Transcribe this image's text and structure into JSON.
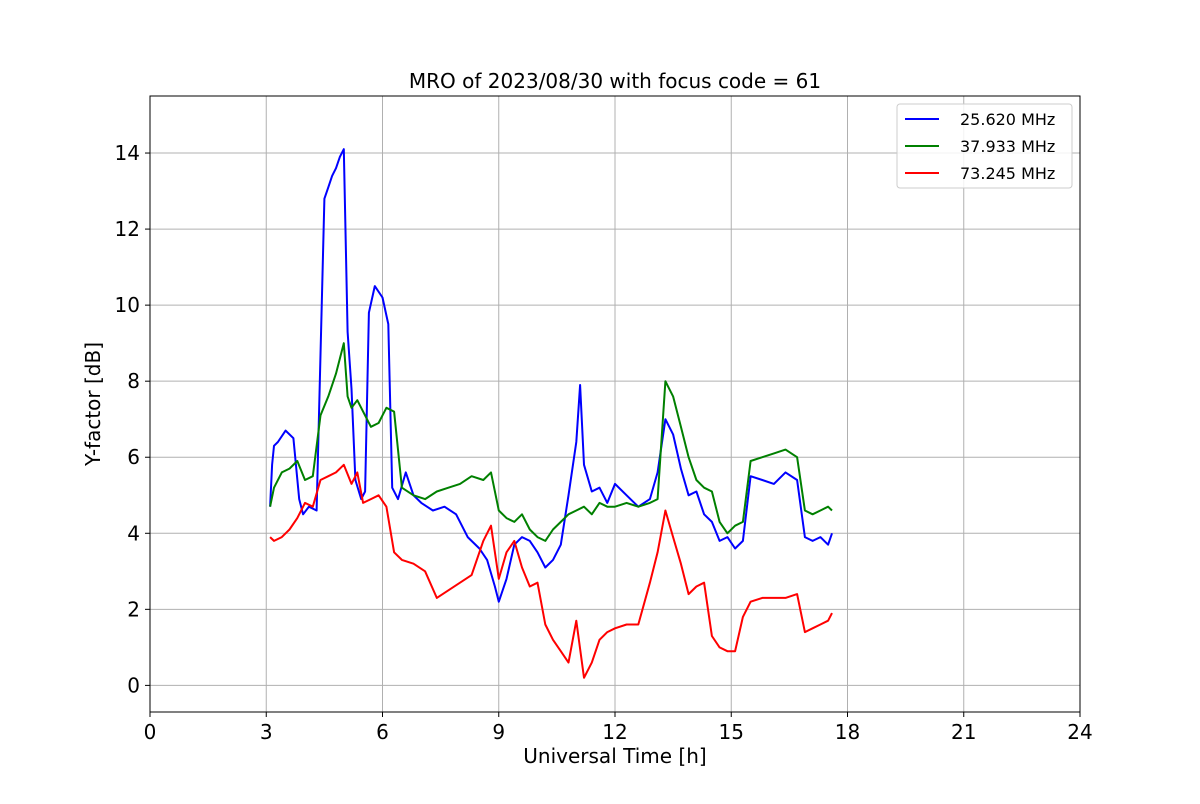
{
  "chart_data": {
    "type": "line",
    "title": "MRO of 2023/08/30 with focus code = 61",
    "xlabel": "Universal Time [h]",
    "ylabel": "Y-factor [dB]",
    "xlim": [
      0,
      24
    ],
    "ylim": [
      -0.7,
      15.5
    ],
    "xticks": [
      0,
      3,
      6,
      9,
      12,
      15,
      18,
      21,
      24
    ],
    "yticks": [
      0,
      2,
      4,
      6,
      8,
      10,
      12,
      14
    ],
    "grid": true,
    "legend_position": "top-right",
    "series": [
      {
        "name": "25.620 MHz",
        "color": "#0000ff",
        "x": [
          3.1,
          3.15,
          3.2,
          3.3,
          3.5,
          3.7,
          3.85,
          3.95,
          4.1,
          4.3,
          4.5,
          4.6,
          4.7,
          4.8,
          4.9,
          5.0,
          5.1,
          5.2,
          5.3,
          5.45,
          5.55,
          5.65,
          5.8,
          6.0,
          6.15,
          6.25,
          6.4,
          6.6,
          6.8,
          7.0,
          7.3,
          7.6,
          7.9,
          8.2,
          8.5,
          8.7,
          8.9,
          9.0,
          9.2,
          9.4,
          9.6,
          9.8,
          10.0,
          10.2,
          10.4,
          10.6,
          10.8,
          11.0,
          11.1,
          11.2,
          11.4,
          11.6,
          11.8,
          12.0,
          12.3,
          12.6,
          12.9,
          13.1,
          13.3,
          13.5,
          13.7,
          13.9,
          14.1,
          14.3,
          14.5,
          14.7,
          14.9,
          15.1,
          15.3,
          15.5,
          15.8,
          16.1,
          16.4,
          16.7,
          16.9,
          17.1,
          17.3,
          17.5,
          17.6
        ],
        "y": [
          4.7,
          5.8,
          6.3,
          6.4,
          6.7,
          6.5,
          4.9,
          4.5,
          4.7,
          4.6,
          12.8,
          13.1,
          13.4,
          13.6,
          13.9,
          14.1,
          9.3,
          7.8,
          5.4,
          4.9,
          5.1,
          9.8,
          10.5,
          10.2,
          9.5,
          5.2,
          4.9,
          5.6,
          5.0,
          4.8,
          4.6,
          4.7,
          4.5,
          3.9,
          3.6,
          3.3,
          2.6,
          2.2,
          2.8,
          3.7,
          3.9,
          3.8,
          3.5,
          3.1,
          3.3,
          3.7,
          5.0,
          6.4,
          7.9,
          5.8,
          5.1,
          5.2,
          4.8,
          5.3,
          5.0,
          4.7,
          4.9,
          5.6,
          7.0,
          6.6,
          5.7,
          5.0,
          5.1,
          4.5,
          4.3,
          3.8,
          3.9,
          3.6,
          3.8,
          5.5,
          5.4,
          5.3,
          5.6,
          5.4,
          3.9,
          3.8,
          3.9,
          3.7,
          4.0
        ]
      },
      {
        "name": "37.933 MHz",
        "color": "#008000",
        "x": [
          3.1,
          3.2,
          3.4,
          3.6,
          3.8,
          4.0,
          4.2,
          4.4,
          4.6,
          4.8,
          5.0,
          5.1,
          5.2,
          5.35,
          5.5,
          5.7,
          5.9,
          6.1,
          6.3,
          6.5,
          6.8,
          7.1,
          7.4,
          7.7,
          8.0,
          8.3,
          8.6,
          8.8,
          9.0,
          9.2,
          9.4,
          9.6,
          9.8,
          10.0,
          10.2,
          10.4,
          10.6,
          10.8,
          11.0,
          11.2,
          11.4,
          11.6,
          11.8,
          12.0,
          12.3,
          12.6,
          12.9,
          13.1,
          13.3,
          13.5,
          13.7,
          13.9,
          14.1,
          14.3,
          14.5,
          14.7,
          14.9,
          15.1,
          15.3,
          15.5,
          15.8,
          16.1,
          16.4,
          16.7,
          16.9,
          17.1,
          17.3,
          17.5,
          17.6
        ],
        "y": [
          4.7,
          5.2,
          5.6,
          5.7,
          5.9,
          5.4,
          5.5,
          7.1,
          7.6,
          8.2,
          9.0,
          7.6,
          7.3,
          7.5,
          7.2,
          6.8,
          6.9,
          7.3,
          7.2,
          5.2,
          5.0,
          4.9,
          5.1,
          5.2,
          5.3,
          5.5,
          5.4,
          5.6,
          4.6,
          4.4,
          4.3,
          4.5,
          4.1,
          3.9,
          3.8,
          4.1,
          4.3,
          4.5,
          4.6,
          4.7,
          4.5,
          4.8,
          4.7,
          4.7,
          4.8,
          4.7,
          4.8,
          4.9,
          8.0,
          7.6,
          6.8,
          6.0,
          5.4,
          5.2,
          5.1,
          4.3,
          4.0,
          4.2,
          4.3,
          5.9,
          6.0,
          6.1,
          6.2,
          6.0,
          4.6,
          4.5,
          4.6,
          4.7,
          4.6
        ]
      },
      {
        "name": "73.245 MHz",
        "color": "#ff0000",
        "x": [
          3.1,
          3.2,
          3.4,
          3.6,
          3.8,
          4.0,
          4.2,
          4.4,
          4.6,
          4.8,
          5.0,
          5.2,
          5.35,
          5.5,
          5.7,
          5.9,
          6.1,
          6.3,
          6.5,
          6.8,
          7.1,
          7.4,
          7.7,
          8.0,
          8.3,
          8.6,
          8.8,
          9.0,
          9.2,
          9.4,
          9.6,
          9.8,
          10.0,
          10.2,
          10.4,
          10.6,
          10.8,
          11.0,
          11.2,
          11.4,
          11.6,
          11.8,
          12.0,
          12.3,
          12.6,
          12.9,
          13.1,
          13.3,
          13.5,
          13.7,
          13.9,
          14.1,
          14.3,
          14.5,
          14.7,
          14.9,
          15.1,
          15.3,
          15.5,
          15.8,
          16.1,
          16.4,
          16.7,
          16.9,
          17.1,
          17.3,
          17.5,
          17.6
        ],
        "y": [
          3.9,
          3.8,
          3.9,
          4.1,
          4.4,
          4.8,
          4.7,
          5.4,
          5.5,
          5.6,
          5.8,
          5.3,
          5.6,
          4.8,
          4.9,
          5.0,
          4.7,
          3.5,
          3.3,
          3.2,
          3.0,
          2.3,
          2.5,
          2.7,
          2.9,
          3.8,
          4.2,
          2.8,
          3.5,
          3.8,
          3.1,
          2.6,
          2.7,
          1.6,
          1.2,
          0.9,
          0.6,
          1.7,
          0.2,
          0.6,
          1.2,
          1.4,
          1.5,
          1.6,
          1.6,
          2.7,
          3.5,
          4.6,
          3.9,
          3.2,
          2.4,
          2.6,
          2.7,
          1.3,
          1.0,
          0.9,
          0.9,
          1.8,
          2.2,
          2.3,
          2.3,
          2.3,
          2.4,
          1.4,
          1.5,
          1.6,
          1.7,
          1.9
        ]
      }
    ]
  }
}
